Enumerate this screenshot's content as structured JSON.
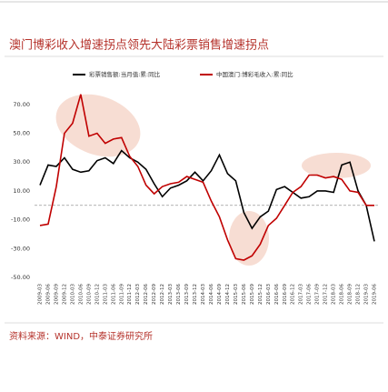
{
  "chart_data": {
    "type": "line",
    "title": "澳门博彩收入增速拐点领先大陆彩票销售增速拐点",
    "source": "资料来源：WIND，中泰证券研究所",
    "categories": [
      "2009-03",
      "2009-06",
      "2009-09",
      "2009-12",
      "2010-03",
      "2010-06",
      "2010-09",
      "2010-12",
      "2011-03",
      "2011-06",
      "2011-09",
      "2011-12",
      "2012-03",
      "2012-06",
      "2012-09",
      "2012-12",
      "2013-03",
      "2013-06",
      "2013-09",
      "2013-12",
      "2014-03",
      "2014-06",
      "2014-09",
      "2014-12",
      "2015-03",
      "2015-06",
      "2015-09",
      "2015-12",
      "2016-03",
      "2016-06",
      "2016-09",
      "2016-12",
      "2017-03",
      "2017-06",
      "2017-09",
      "2017-12",
      "2018-03",
      "2018-06",
      "2018-09",
      "2018-12",
      "2019-03",
      "2019-06"
    ],
    "series": [
      {
        "name": "彩票销售额:当月值:累:同比",
        "color": "#000000",
        "values": [
          14,
          28,
          27,
          33,
          25,
          23,
          24,
          31,
          33,
          29,
          38,
          33,
          30,
          25,
          15,
          6,
          12,
          14,
          17,
          23,
          17,
          24,
          35,
          22,
          17,
          -5,
          -16,
          -8,
          -4,
          11,
          13,
          9,
          5,
          6,
          10,
          10,
          9,
          28,
          30,
          10,
          0,
          -25
        ]
      },
      {
        "name": "中国澳门:博彩毛收入:累:同比",
        "color": "#c00000",
        "values": [
          -14,
          -13,
          13,
          50,
          57,
          77,
          48,
          50,
          43,
          46,
          47,
          34,
          27,
          14,
          8,
          13,
          15,
          16,
          20,
          18,
          16,
          3,
          -8,
          -24,
          -37,
          -38,
          -35,
          -27,
          -14,
          -9,
          0,
          9,
          13,
          21,
          21,
          19,
          20,
          18,
          10,
          9,
          0,
          0
        ]
      }
    ],
    "ylim": [
      -50,
      80
    ],
    "yticks": [
      {
        "value": 70,
        "label": "70.00"
      },
      {
        "value": 50,
        "label": "50.00"
      },
      {
        "value": 30,
        "label": "30.00"
      },
      {
        "value": 10,
        "label": "10.00"
      },
      {
        "value": -10,
        "label": "-10.00"
      },
      {
        "value": -30,
        "label": "-30.00"
      },
      {
        "value": -50,
        "label": "-50.00"
      }
    ]
  }
}
